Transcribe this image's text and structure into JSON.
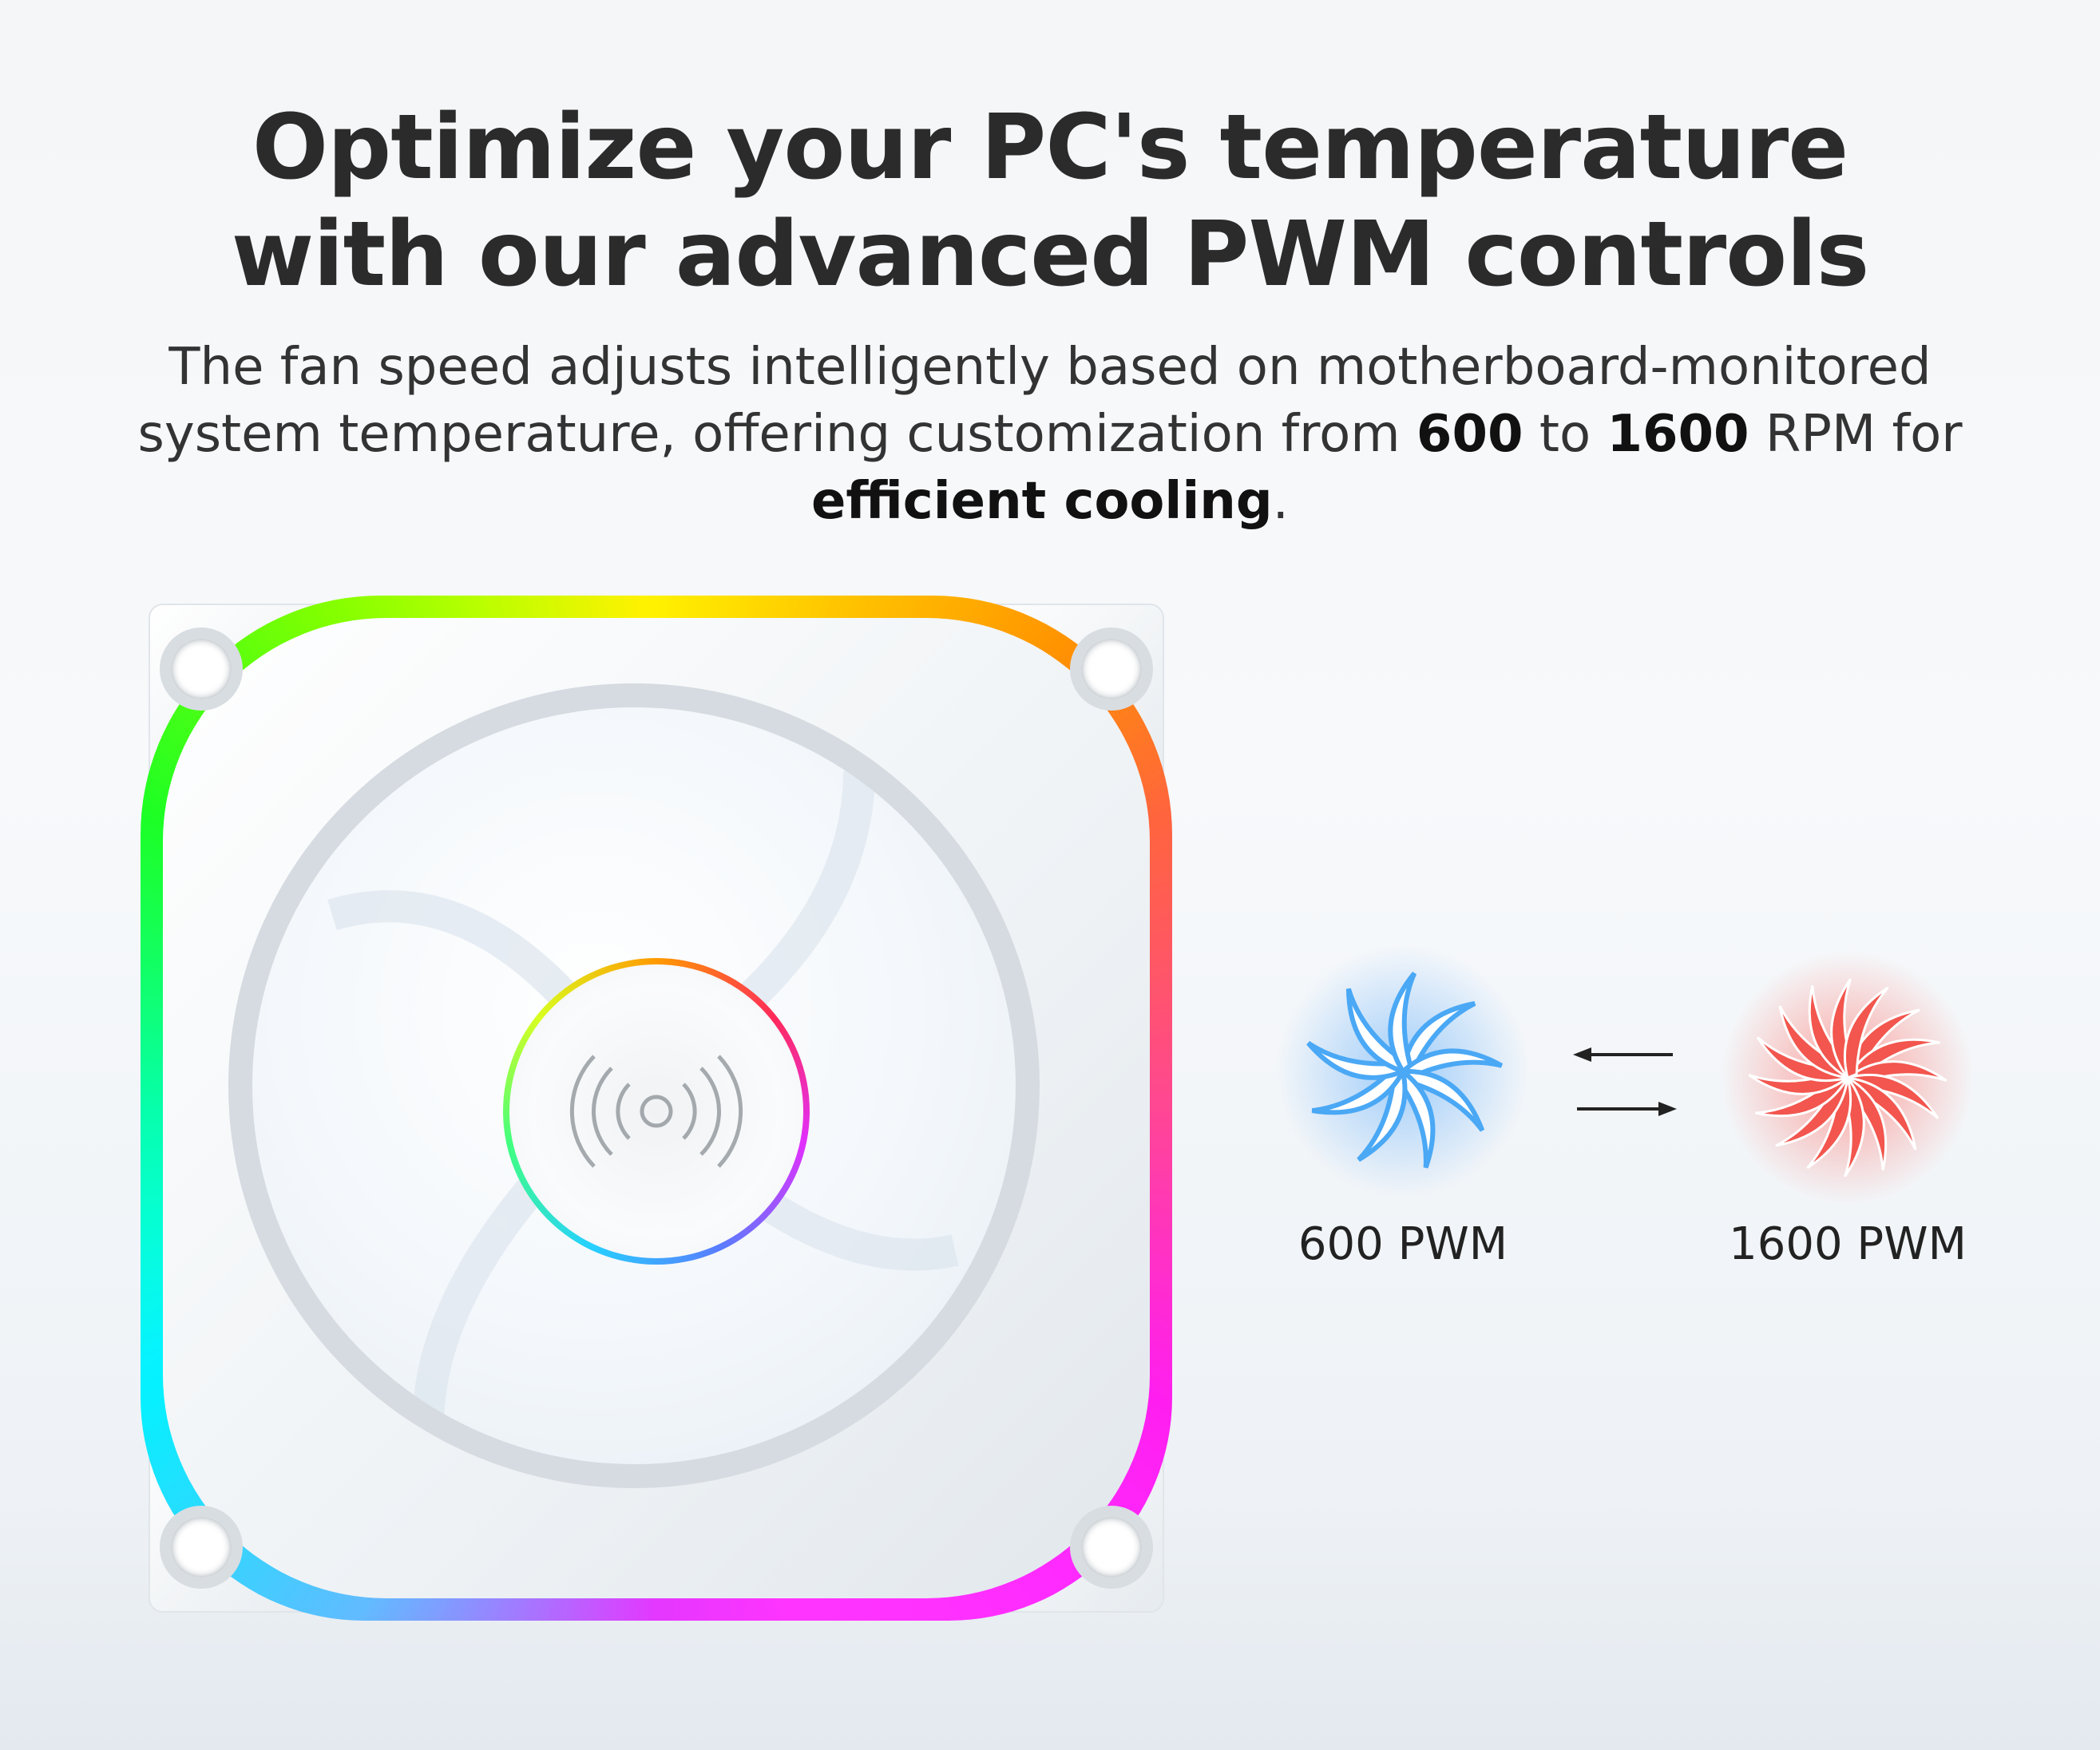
{
  "headline": {
    "line1": "Optimize your PC's temperature",
    "line2": "with our advanced PWM controls"
  },
  "description": {
    "part1": "The fan speed adjusts intelligently based on motherboard-monitored system temperature, offering customization from ",
    "min_rpm": "600",
    "part2": " to ",
    "max_rpm": "1600",
    "part3": " RPM for ",
    "emphasis": "efficient cooling",
    "part4": "."
  },
  "speeds": {
    "low": {
      "label": "600 PWM",
      "color": "#4aa8f5"
    },
    "high": {
      "label": "1600 PWM",
      "color": "#f2564e"
    }
  },
  "icons": [
    "fan-product-image",
    "low-speed-fan-icon",
    "high-speed-fan-icon",
    "swap-arrows-icon"
  ]
}
